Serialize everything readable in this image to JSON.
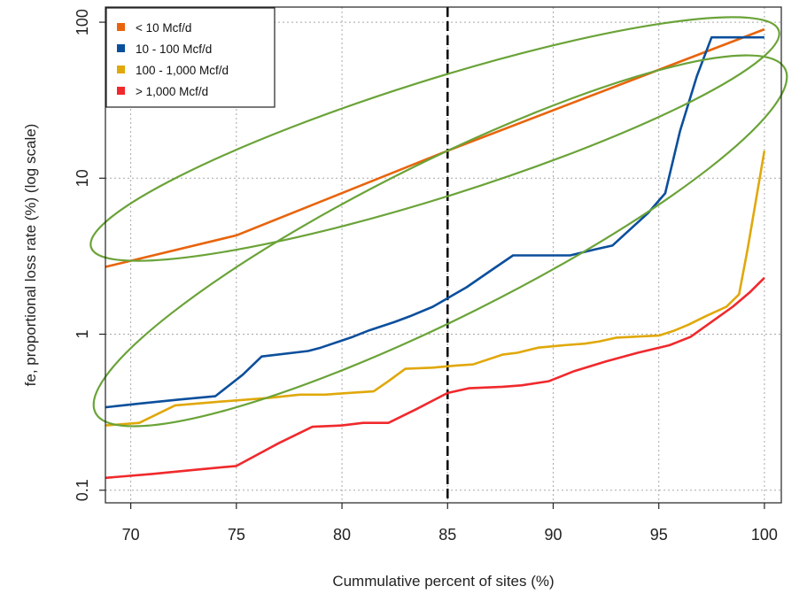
{
  "chart_data": {
    "type": "line",
    "title": "",
    "xlabel": "Cummulative percent of sites (%)",
    "ylabel": "fe, proportional loss rate (%) (log scale)",
    "x_ticks": [
      70,
      75,
      80,
      85,
      90,
      95,
      100
    ],
    "x_tick_labels": [
      "70",
      "75",
      "80",
      "85",
      "90",
      "95",
      "100"
    ],
    "y_ticks": [
      0.1,
      1,
      10,
      100
    ],
    "y_tick_labels": [
      "0.1",
      "1",
      "10",
      "100"
    ],
    "xlim": [
      68.8,
      100.8
    ],
    "ylim": [
      0.083,
      125
    ],
    "y_scale": "log",
    "grid": true,
    "grid_style": "dotted",
    "legend_position": "top-left",
    "vertical_reference_line": {
      "x": 85,
      "style": "dashed",
      "color": "#000000"
    },
    "series": [
      {
        "name": "< 10 Mcf/d",
        "color": "#e8640c",
        "x": [
          68.8,
          75,
          85,
          100
        ],
        "y": [
          2.7,
          4.3,
          15,
          90
        ]
      },
      {
        "name": "10 - 100 Mcf/d",
        "color": "#0b4f9c",
        "x": [
          68.8,
          70.5,
          72.2,
          74,
          75.3,
          76.2,
          78.4,
          79,
          80.5,
          81.3,
          82.5,
          83.2,
          84.3,
          85.9,
          87.3,
          88.1,
          89.1,
          90.8,
          92,
          92.8,
          94.5,
          95.3,
          96,
          96.8,
          97.5,
          98.3,
          99,
          100
        ],
        "y": [
          0.34,
          0.36,
          0.38,
          0.4,
          0.55,
          0.72,
          0.78,
          0.82,
          0.96,
          1.06,
          1.2,
          1.3,
          1.5,
          2.0,
          2.7,
          3.2,
          3.2,
          3.2,
          3.5,
          3.7,
          6.0,
          8.0,
          20,
          45,
          80,
          80,
          80,
          80
        ]
      },
      {
        "name": "100 - 1,000 Mcf/d",
        "color": "#e0a80a",
        "x": [
          68.8,
          70.4,
          72.1,
          74.3,
          76.5,
          78,
          79.2,
          80.3,
          81.5,
          82.2,
          83,
          84.3,
          85.4,
          86.2,
          87.6,
          88.3,
          89.3,
          90.5,
          91.5,
          92.2,
          93,
          94.2,
          95,
          95.7,
          96.4,
          97.2,
          98.2,
          98.8,
          99.2,
          100
        ],
        "y": [
          0.26,
          0.27,
          0.35,
          0.37,
          0.39,
          0.41,
          0.41,
          0.42,
          0.43,
          0.5,
          0.6,
          0.61,
          0.63,
          0.64,
          0.74,
          0.76,
          0.82,
          0.85,
          0.87,
          0.9,
          0.95,
          0.97,
          0.98,
          1.05,
          1.15,
          1.3,
          1.5,
          1.8,
          3.5,
          15
        ]
      },
      {
        "name": "> 1,000 Mcf/d",
        "color": "#f0292c",
        "x": [
          68.8,
          71,
          73,
          75,
          77,
          78.6,
          80,
          81,
          82.2,
          83.5,
          85,
          86,
          87.6,
          88.5,
          89.8,
          91,
          92.5,
          94,
          95.5,
          96.5,
          97.5,
          98.5,
          99.3,
          100
        ],
        "y": [
          0.12,
          0.127,
          0.135,
          0.143,
          0.2,
          0.255,
          0.26,
          0.27,
          0.27,
          0.33,
          0.42,
          0.45,
          0.46,
          0.47,
          0.5,
          0.58,
          0.67,
          0.76,
          0.85,
          0.96,
          1.2,
          1.5,
          1.85,
          2.3
        ]
      }
    ],
    "annotations": {
      "ellipse_color": "#6aa338"
    }
  }
}
